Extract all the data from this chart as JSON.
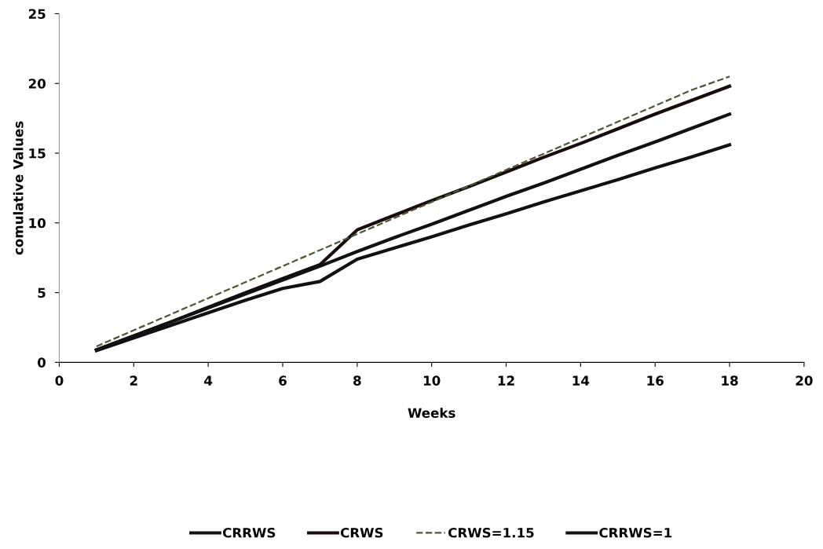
{
  "chart_data": {
    "type": "line",
    "xlabel": "Weeks",
    "ylabel": "comulative Values",
    "x": [
      1,
      2,
      3,
      4,
      5,
      6,
      7,
      8,
      9,
      10,
      11,
      12,
      13,
      14,
      15,
      16,
      17,
      18
    ],
    "series": [
      {
        "name": "CRRWS",
        "color": "#111111",
        "values": [
          0.85,
          1.75,
          2.65,
          3.55,
          4.45,
          5.3,
          5.8,
          7.4,
          8.2,
          9.0,
          9.85,
          10.65,
          11.5,
          12.3,
          13.1,
          13.95,
          14.75,
          15.6
        ]
      },
      {
        "name": "CRWS",
        "color": "#1a0a0a",
        "values": [
          0.9,
          1.9,
          2.9,
          3.95,
          5.0,
          6.0,
          7.0,
          9.5,
          10.55,
          11.6,
          12.6,
          13.65,
          14.7,
          15.7,
          16.75,
          17.8,
          18.8,
          19.8
        ]
      },
      {
        "name": "CRWS=1.15",
        "color": "#4a5a2a",
        "line_style": "dashed",
        "values": [
          1.15,
          2.3,
          3.45,
          4.6,
          5.75,
          6.9,
          8.05,
          9.2,
          10.35,
          11.5,
          12.65,
          13.8,
          14.95,
          16.1,
          17.25,
          18.4,
          19.55,
          20.5
        ]
      },
      {
        "name": "CRRWS=1",
        "color": "#111111",
        "values": [
          0.9,
          1.9,
          2.9,
          3.9,
          4.9,
          5.9,
          6.9,
          7.95,
          8.95,
          9.9,
          10.9,
          11.9,
          12.85,
          13.85,
          14.85,
          15.8,
          16.8,
          17.8
        ]
      }
    ],
    "xlim": [
      0,
      20
    ],
    "xticks": [
      0,
      2,
      4,
      6,
      8,
      10,
      12,
      14,
      16,
      18,
      20
    ],
    "ylim": [
      0,
      25
    ],
    "yticks": [
      0,
      5,
      10,
      15,
      20,
      25
    ],
    "grid": false,
    "legend": "bottom",
    "line_style": "solid",
    "marker": "none"
  }
}
